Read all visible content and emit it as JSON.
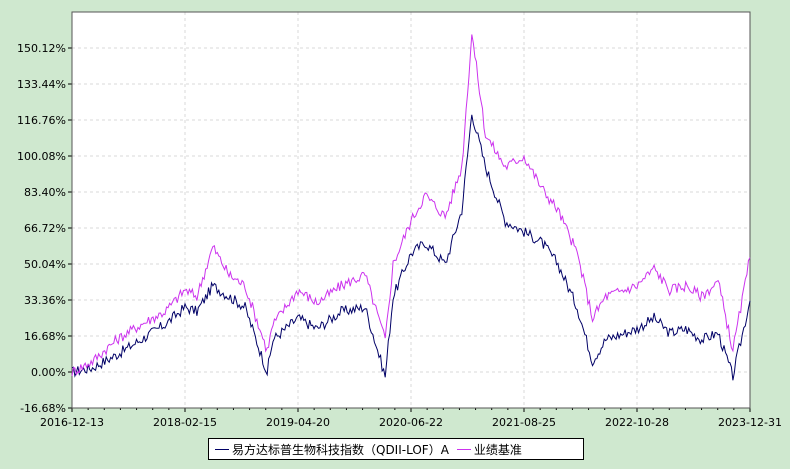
{
  "chart_data": {
    "type": "line",
    "y_ticks": [
      "150.12%",
      "133.44%",
      "116.76%",
      "100.08%",
      "83.40%",
      "66.72%",
      "50.04%",
      "33.36%",
      "16.68%",
      "0.00%",
      "-16.68%"
    ],
    "y_tick_values": [
      150.12,
      133.44,
      116.76,
      100.08,
      83.4,
      66.72,
      50.04,
      33.36,
      16.68,
      0.0,
      -16.68
    ],
    "ylim": [
      -16.68,
      166.8
    ],
    "x_ticks": [
      "2016-12-13",
      "2018-02-15",
      "2019-04-20",
      "2020-06-22",
      "2021-08-25",
      "2022-10-28",
      "2023-12-31"
    ],
    "grid": true,
    "legend_placement": "bottom-center",
    "series": [
      {
        "name": "易方达标普生物科技指数（QDII-LOF）A",
        "color": "#000066",
        "x": [
          "2016-12-13",
          "2017-03-01",
          "2017-06-01",
          "2017-09-01",
          "2017-12-01",
          "2018-02-15",
          "2018-04-01",
          "2018-06-01",
          "2018-08-01",
          "2018-10-01",
          "2018-12-24",
          "2019-01-15",
          "2019-04-20",
          "2019-07-01",
          "2019-10-01",
          "2019-12-31",
          "2020-03-16",
          "2020-04-15",
          "2020-06-22",
          "2020-08-15",
          "2020-10-30",
          "2021-01-01",
          "2021-02-08",
          "2021-04-01",
          "2021-06-15",
          "2021-08-25",
          "2021-11-01",
          "2022-01-01",
          "2022-03-15",
          "2022-05-12",
          "2022-07-01",
          "2022-10-28",
          "2023-01-01",
          "2023-03-01",
          "2023-05-01",
          "2023-07-01",
          "2023-09-01",
          "2023-10-27",
          "2023-12-31"
        ],
        "values": [
          0,
          2,
          8,
          15,
          22,
          30,
          28,
          40,
          35,
          30,
          0,
          15,
          25,
          20,
          28,
          30,
          -2,
          35,
          55,
          60,
          50,
          75,
          120,
          95,
          70,
          65,
          60,
          50,
          30,
          5,
          15,
          20,
          25,
          18,
          20,
          15,
          18,
          -2,
          33
        ]
      },
      {
        "name": "业绩基准",
        "color": "#cc33ee",
        "x": [
          "2016-12-13",
          "2017-03-01",
          "2017-06-01",
          "2017-09-01",
          "2017-12-01",
          "2018-02-15",
          "2018-04-01",
          "2018-06-01",
          "2018-08-01",
          "2018-10-01",
          "2018-12-24",
          "2019-01-15",
          "2019-04-20",
          "2019-07-01",
          "2019-10-01",
          "2019-12-31",
          "2020-03-16",
          "2020-04-15",
          "2020-06-22",
          "2020-08-15",
          "2020-10-30",
          "2021-01-01",
          "2021-02-08",
          "2021-04-01",
          "2021-06-15",
          "2021-08-25",
          "2021-11-01",
          "2022-01-01",
          "2022-03-15",
          "2022-05-12",
          "2022-07-01",
          "2022-10-28",
          "2023-01-01",
          "2023-03-01",
          "2023-05-01",
          "2023-07-01",
          "2023-09-01",
          "2023-10-27",
          "2023-12-31"
        ],
        "values": [
          0,
          5,
          15,
          22,
          28,
          38,
          35,
          58,
          45,
          40,
          10,
          22,
          38,
          32,
          40,
          45,
          15,
          50,
          70,
          82,
          72,
          95,
          157,
          110,
          95,
          100,
          85,
          75,
          55,
          25,
          35,
          40,
          48,
          38,
          40,
          35,
          42,
          10,
          53
        ]
      }
    ]
  }
}
